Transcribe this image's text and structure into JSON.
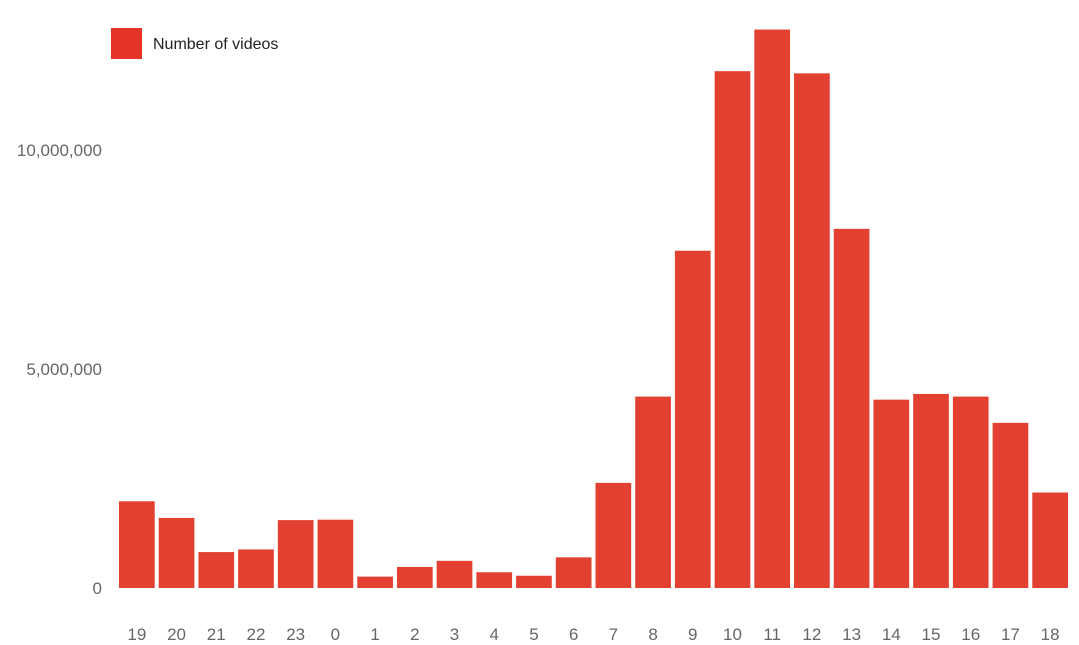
{
  "colors": {
    "bar": "#e24131",
    "legend_swatch": "#e43427"
  },
  "legend": {
    "label": "Number of videos",
    "position": "top-left"
  },
  "chart_data": {
    "type": "bar",
    "categories": [
      "19",
      "20",
      "21",
      "22",
      "23",
      "0",
      "1",
      "2",
      "3",
      "4",
      "5",
      "6",
      "7",
      "8",
      "9",
      "10",
      "11",
      "12",
      "13",
      "14",
      "15",
      "16",
      "17",
      "18"
    ],
    "series": [
      {
        "name": "Number of videos",
        "values": [
          1980000,
          1600000,
          820000,
          880000,
          1550000,
          1560000,
          260000,
          480000,
          620000,
          360000,
          280000,
          700000,
          2400000,
          4370000,
          7700000,
          11800000,
          12750000,
          11750000,
          8200000,
          4300000,
          4430000,
          4370000,
          3770000,
          2180000
        ]
      }
    ],
    "ylim": [
      0,
      12800000
    ],
    "yticks": [
      0,
      5000000,
      10000000
    ],
    "ytick_labels": [
      "0",
      "5,000,000",
      "10,000,000"
    ],
    "grid": false,
    "title": "",
    "xlabel": "",
    "ylabel": ""
  }
}
